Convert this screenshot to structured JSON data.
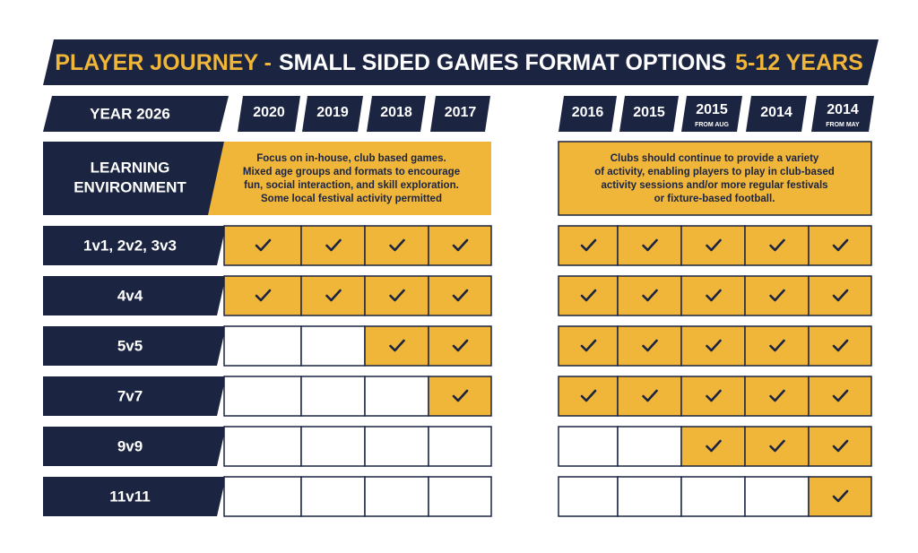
{
  "title": {
    "part1": "PLAYER JOURNEY -",
    "part2": "SMALL SIDED GAMES FORMAT OPTIONS",
    "part3": "5-12 YEARS"
  },
  "header": {
    "label": "YEAR 2026",
    "columns": [
      {
        "year": "2020"
      },
      {
        "year": "2019"
      },
      {
        "year": "2018"
      },
      {
        "year": "2017"
      },
      {
        "year": "2016"
      },
      {
        "year": "2015"
      },
      {
        "year": "2015",
        "note": "FROM AUG"
      },
      {
        "year": "2014"
      },
      {
        "year": "2014",
        "note": "FROM MAY"
      }
    ]
  },
  "learning": {
    "label": [
      "LEARNING",
      "ENVIRONMENT"
    ],
    "left": [
      "Focus on in-house, club based games.",
      "Mixed age groups and formats to encourage",
      "fun, social interaction, and skill exploration.",
      "Some local festival activity permitted"
    ],
    "right": [
      "Clubs should continue to provide a variety",
      "of activity, enabling players to play in club-based",
      "activity sessions and/or more regular festivals",
      "or fixture-based football."
    ]
  },
  "rows": [
    {
      "label": "1v1, 2v2, 3v3",
      "cells": [
        true,
        true,
        true,
        true,
        true,
        true,
        true,
        true,
        true
      ]
    },
    {
      "label": "4v4",
      "cells": [
        true,
        true,
        true,
        true,
        true,
        true,
        true,
        true,
        true
      ]
    },
    {
      "label": "5v5",
      "cells": [
        false,
        false,
        true,
        true,
        true,
        true,
        true,
        true,
        true
      ]
    },
    {
      "label": "7v7",
      "cells": [
        false,
        false,
        false,
        true,
        true,
        true,
        true,
        true,
        true
      ]
    },
    {
      "label": "9v9",
      "cells": [
        false,
        false,
        false,
        false,
        false,
        false,
        true,
        true,
        true
      ]
    },
    {
      "label": "11v11",
      "cells": [
        false,
        false,
        false,
        false,
        false,
        false,
        false,
        false,
        true
      ]
    }
  ]
}
